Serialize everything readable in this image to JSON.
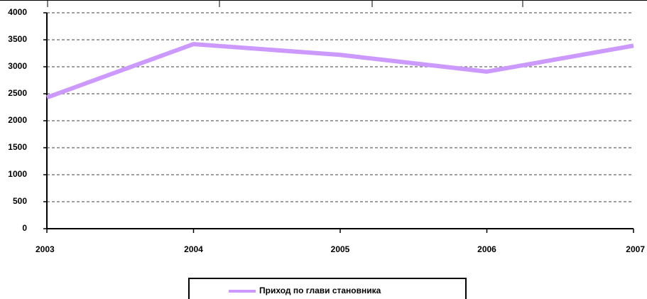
{
  "chart_data": {
    "type": "line",
    "categories": [
      "2003",
      "2004",
      "2005",
      "2006",
      "2007"
    ],
    "series": [
      {
        "name": "Приход по глави становника",
        "color": "#cc99ff",
        "values": [
          2430,
          3420,
          3220,
          2910,
          3390
        ]
      }
    ],
    "ylim": [
      0,
      4000
    ],
    "yticks": [
      0,
      500,
      1000,
      1500,
      2000,
      2500,
      3000,
      3500,
      4000
    ],
    "grid": true,
    "legend": "bottom"
  }
}
